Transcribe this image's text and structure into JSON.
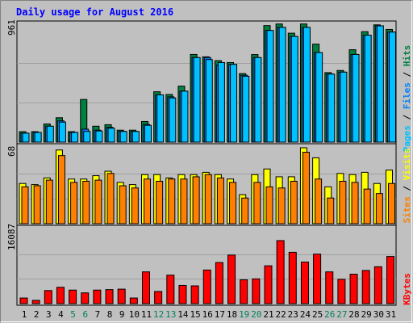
{
  "title": "Daily usage for August 2016",
  "colors": {
    "background": "#c0c0c0",
    "border": "#808080",
    "title": "#0000ff",
    "hits": "#008040",
    "files": "#0080ff",
    "pages": "#00c0ff",
    "visits": "#ffff00",
    "sites": "#ff8000",
    "kbytes": "#ff0000",
    "weekend_label": "#00805c"
  },
  "chart_data": [
    {
      "type": "bar",
      "title": "Daily usage for August 2016",
      "ylabel_parts": [
        "Pages",
        "Files",
        "Hits"
      ],
      "ymax_label": "961",
      "ylim": [
        0,
        961
      ],
      "categories": [
        "1",
        "2",
        "3",
        "4",
        "5",
        "6",
        "7",
        "8",
        "9",
        "10",
        "11",
        "12",
        "13",
        "14",
        "15",
        "16",
        "17",
        "18",
        "19",
        "20",
        "21",
        "22",
        "23",
        "24",
        "25",
        "26",
        "27",
        "28",
        "29",
        "30",
        "31"
      ],
      "series": [
        {
          "name": "Hits",
          "values": [
            84,
            84,
            146,
            196,
            84,
            343,
            128,
            140,
            96,
            96,
            166,
            405,
            383,
            450,
            705,
            686,
            655,
            640,
            551,
            704,
            937,
            950,
            876,
            950,
            788,
            559,
            576,
            743,
            888,
            943,
            906
          ]
        },
        {
          "name": "Files",
          "values": [
            72,
            78,
            128,
            171,
            78,
            104,
            96,
            119,
            86,
            86,
            143,
            380,
            364,
            410,
            680,
            680,
            620,
            625,
            538,
            680,
            898,
            923,
            850,
            923,
            720,
            547,
            563,
            705,
            860,
            935,
            885
          ]
        },
        {
          "name": "Pages",
          "values": [
            72,
            78,
            128,
            161,
            78,
            86,
            90,
            112,
            86,
            86,
            135,
            380,
            355,
            410,
            680,
            664,
            640,
            625,
            530,
            680,
            898,
            923,
            850,
            923,
            720,
            547,
            563,
            705,
            860,
            935,
            885
          ]
        }
      ]
    },
    {
      "type": "bar",
      "ylabel_parts": [
        "Sites",
        "Visits"
      ],
      "ymax_label": "68",
      "ylim": [
        0,
        68
      ],
      "categories": [
        "1",
        "2",
        "3",
        "4",
        "5",
        "6",
        "7",
        "8",
        "9",
        "10",
        "11",
        "12",
        "13",
        "14",
        "15",
        "16",
        "17",
        "18",
        "19",
        "20",
        "21",
        "22",
        "23",
        "24",
        "25",
        "26",
        "27",
        "28",
        "29",
        "30",
        "31"
      ],
      "series": [
        {
          "name": "Visits",
          "values": [
            36,
            35,
            41,
            66,
            40,
            40,
            43,
            47,
            37,
            35,
            44,
            44,
            41,
            44,
            44,
            46,
            44,
            40,
            26,
            44,
            49,
            42,
            42,
            68,
            59,
            33,
            45,
            44,
            46,
            36,
            48
          ]
        },
        {
          "name": "Sites",
          "values": [
            33,
            34,
            39,
            61,
            37,
            38,
            39,
            45,
            34,
            32,
            40,
            38,
            40,
            40,
            42,
            44,
            41,
            37,
            23,
            37,
            33,
            32,
            38,
            64,
            40,
            23,
            38,
            37,
            31,
            27,
            36
          ]
        }
      ]
    },
    {
      "type": "bar",
      "ylabel_parts": [
        "KBytes"
      ],
      "ymax_label": "16087",
      "ylim": [
        0,
        16087
      ],
      "categories": [
        "1",
        "2",
        "3",
        "4",
        "5",
        "6",
        "7",
        "8",
        "9",
        "10",
        "11",
        "12",
        "13",
        "14",
        "15",
        "16",
        "17",
        "18",
        "19",
        "20",
        "21",
        "22",
        "23",
        "24",
        "25",
        "26",
        "27",
        "28",
        "29",
        "30",
        "31"
      ],
      "series": [
        {
          "name": "KBytes",
          "values": [
            1200,
            700,
            2800,
            3500,
            2900,
            2300,
            2900,
            3000,
            3100,
            1200,
            6800,
            2600,
            6100,
            3900,
            3800,
            7200,
            8800,
            10400,
            5100,
            5300,
            8100,
            13500,
            11000,
            8900,
            10600,
            6800,
            5200,
            6300,
            7100,
            7900,
            10100
          ]
        }
      ]
    }
  ]
}
